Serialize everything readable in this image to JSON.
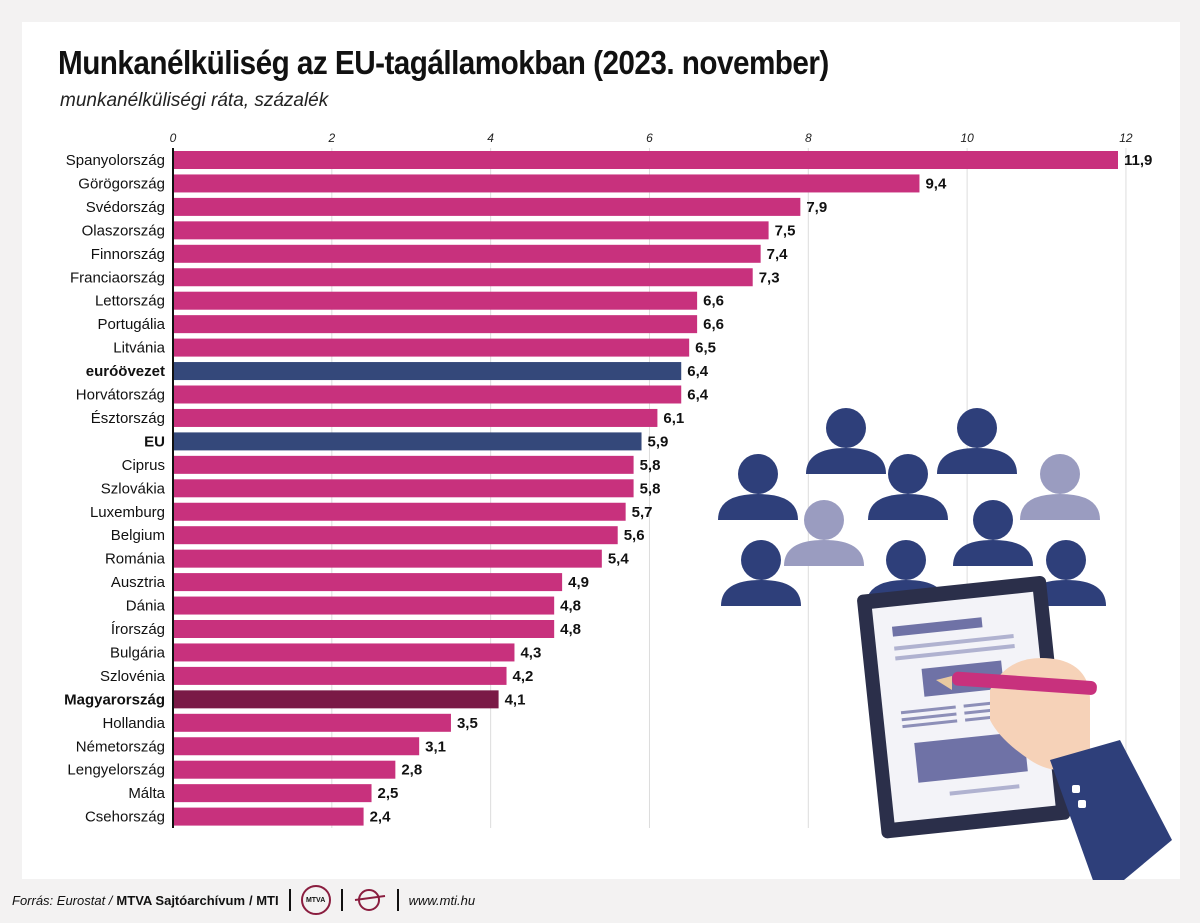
{
  "title": "Munkanélküliség az EU-tagállamokban (2023. november)",
  "subtitle": "munkanélküliségi ráta, százalék",
  "footer": {
    "source_prefix": "Forrás: Eurostat /",
    "archive": "MTVA Sajtóarchívum",
    "agency": "/ MTI",
    "logo_text": "MTVA",
    "website": "www.mti.hu"
  },
  "colors": {
    "country": "#c8317d",
    "aggregate": "#34487a",
    "highlight": "#7a1a46",
    "people_dark": "#2e3f7a",
    "people_light": "#9a9cc0"
  },
  "illustration": {
    "description_icons": [
      "person-icon",
      "clipboard-icon",
      "hand-pen-icon"
    ]
  },
  "chart_data": {
    "type": "bar",
    "orientation": "horizontal",
    "title": "Munkanélküliség az EU-tagállamokban (2023. november)",
    "subtitle": "munkanélküliségi ráta, százalék",
    "xlim": [
      0,
      12
    ],
    "xticks": [
      0,
      2,
      4,
      6,
      8,
      10,
      12
    ],
    "grid": true,
    "categories": [
      "Spanyolország",
      "Görögország",
      "Svédország",
      "Olaszország",
      "Finnország",
      "Franciaország",
      "Lettország",
      "Portugália",
      "Litvánia",
      "euróövezet",
      "Horvátország",
      "Észtország",
      "EU",
      "Ciprus",
      "Szlovákia",
      "Luxemburg",
      "Belgium",
      "Románia",
      "Ausztria",
      "Dánia",
      "Írország",
      "Bulgária",
      "Szlovénia",
      "Magyarország",
      "Hollandia",
      "Németország",
      "Lengyelország",
      "Málta",
      "Csehország"
    ],
    "values": [
      11.9,
      9.4,
      7.9,
      7.5,
      7.4,
      7.3,
      6.6,
      6.6,
      6.5,
      6.4,
      6.4,
      6.1,
      5.9,
      5.8,
      5.8,
      5.7,
      5.6,
      5.4,
      4.9,
      4.8,
      4.8,
      4.3,
      4.2,
      4.1,
      3.5,
      3.1,
      2.8,
      2.5,
      2.4
    ],
    "value_labels": [
      "11,9",
      "9,4",
      "7,9",
      "7,5",
      "7,4",
      "7,3",
      "6,6",
      "6,6",
      "6,5",
      "6,4",
      "6,4",
      "6,1",
      "5,9",
      "5,8",
      "5,8",
      "5,7",
      "5,6",
      "5,4",
      "4,9",
      "4,8",
      "4,8",
      "4,3",
      "4,2",
      "4,1",
      "3,5",
      "3,1",
      "2,8",
      "2,5",
      "2,4"
    ],
    "kind": [
      "country",
      "country",
      "country",
      "country",
      "country",
      "country",
      "country",
      "country",
      "country",
      "aggregate",
      "country",
      "country",
      "aggregate",
      "country",
      "country",
      "country",
      "country",
      "country",
      "country",
      "country",
      "country",
      "country",
      "country",
      "highlight",
      "country",
      "country",
      "country",
      "country",
      "country"
    ]
  }
}
